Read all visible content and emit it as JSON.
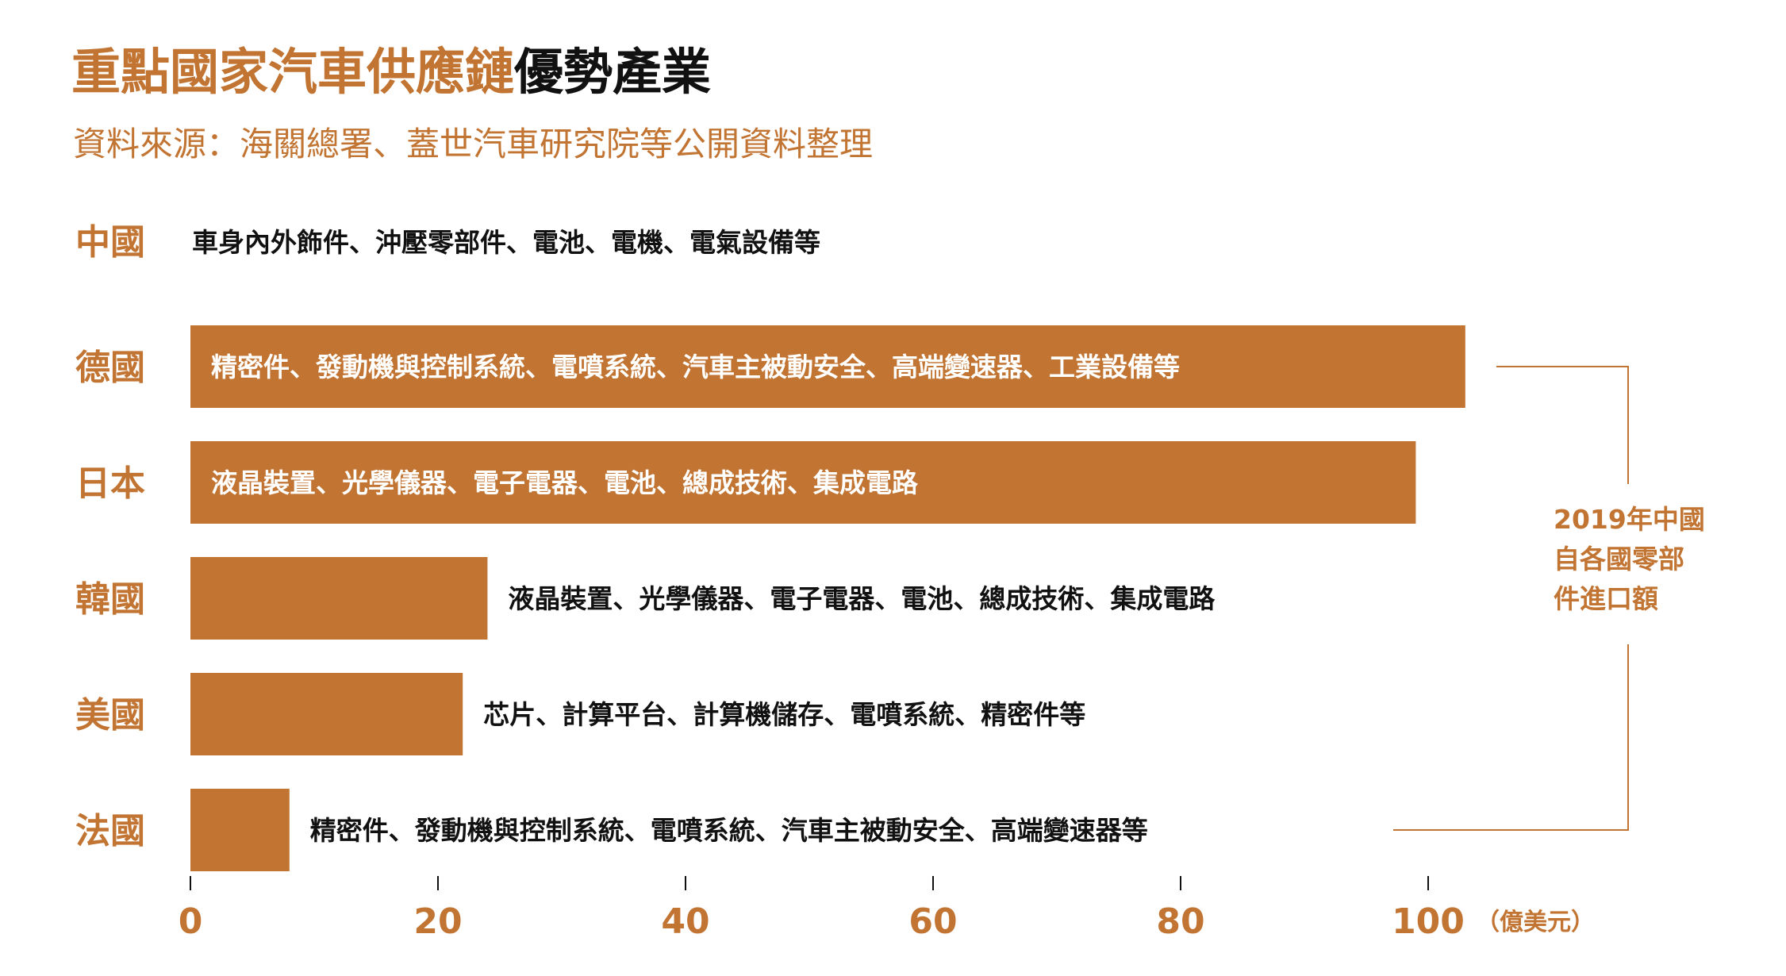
{
  "title_part1": "重點國家汽車供應鏈",
  "title_part2": "優勢產業",
  "source": "資料來源：海關總署、蓋世汽車研究院等公開資料整理",
  "china": {
    "label": "中國",
    "desc": "車身內外飾件、沖壓零部件、電池、電機、電氣設備等"
  },
  "annotation": [
    "2019年中國",
    "自各國零部",
    "件進口額"
  ],
  "colors": {
    "accent": "#c27432",
    "text": "#111111",
    "bar_text": "#ffffff"
  },
  "chart_data": {
    "type": "bar",
    "orientation": "horizontal",
    "categories": [
      "德國",
      "日本",
      "韓國",
      "美國",
      "法國"
    ],
    "values": [
      103,
      99,
      24,
      22,
      8
    ],
    "descriptions": [
      "精密件、發動機與控制系統、電噴系統、汽車主被動安全、高端變速器、工業設備等",
      "液晶裝置、光學儀器、電子電器、電池、總成技術、集成電路",
      "液晶裝置、光學儀器、電子電器、電池、總成技術、集成電路",
      "芯片、計算平台、計算機儲存、電噴系統、精密件等",
      "精密件、發動機與控制系統、電噴系統、汽車主被動安全、高端變速器等"
    ],
    "xticks": [
      0,
      20,
      40,
      60,
      80,
      100
    ],
    "xlim": [
      0,
      105
    ],
    "unit": "（億美元）",
    "bar_color": "#c27432"
  }
}
